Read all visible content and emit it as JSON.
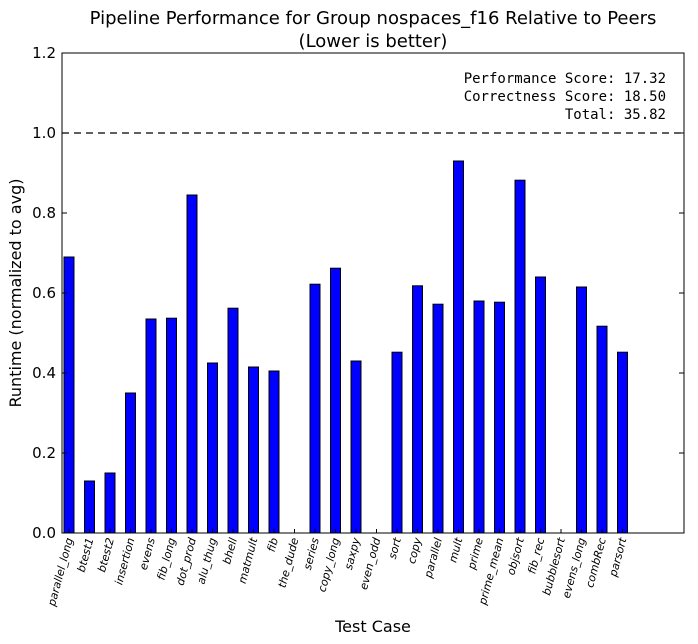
{
  "chart_data": {
    "type": "bar",
    "title": "Pipeline Performance for Group nospaces_f16 Relative to Peers",
    "subtitle": "(Lower is better)",
    "xlabel": "Test Case",
    "ylabel": "Runtime (normalized to avg)",
    "ylim": [
      0,
      1.2
    ],
    "yticks": [
      "0.0",
      "0.2",
      "0.4",
      "0.6",
      "0.8",
      "1.0",
      "1.2"
    ],
    "reference_line": 1.0,
    "bar_color": "#0000ff",
    "categories": [
      "parallel_long",
      "btest1",
      "btest2",
      "insertion",
      "evens",
      "fib_long",
      "dot_prod",
      "alu_thug",
      "bhell",
      "matmult",
      "fib",
      "the_dude",
      "series",
      "copy_long",
      "saxpy",
      "even_odd",
      "sort",
      "copy",
      "parallel",
      "mult",
      "prime",
      "prime_mean",
      "objsort",
      "fib_rec",
      "bubblesort",
      "evens_long",
      "combRec",
      "parsort"
    ],
    "values": [
      0.69,
      0.13,
      0.15,
      0.35,
      0.535,
      0.537,
      0.845,
      0.425,
      0.562,
      0.415,
      0.405,
      0.0,
      0.622,
      0.662,
      0.43,
      0.0,
      0.452,
      0.618,
      0.572,
      0.93,
      0.58,
      0.577,
      0.882,
      0.64,
      0.0,
      0.615,
      0.517,
      0.452
    ],
    "annotations": {
      "performance": "Performance Score: 17.32",
      "correctness": "Correctness Score: 18.50",
      "total": "Total: 35.82"
    },
    "grid": false,
    "legend": "none"
  }
}
